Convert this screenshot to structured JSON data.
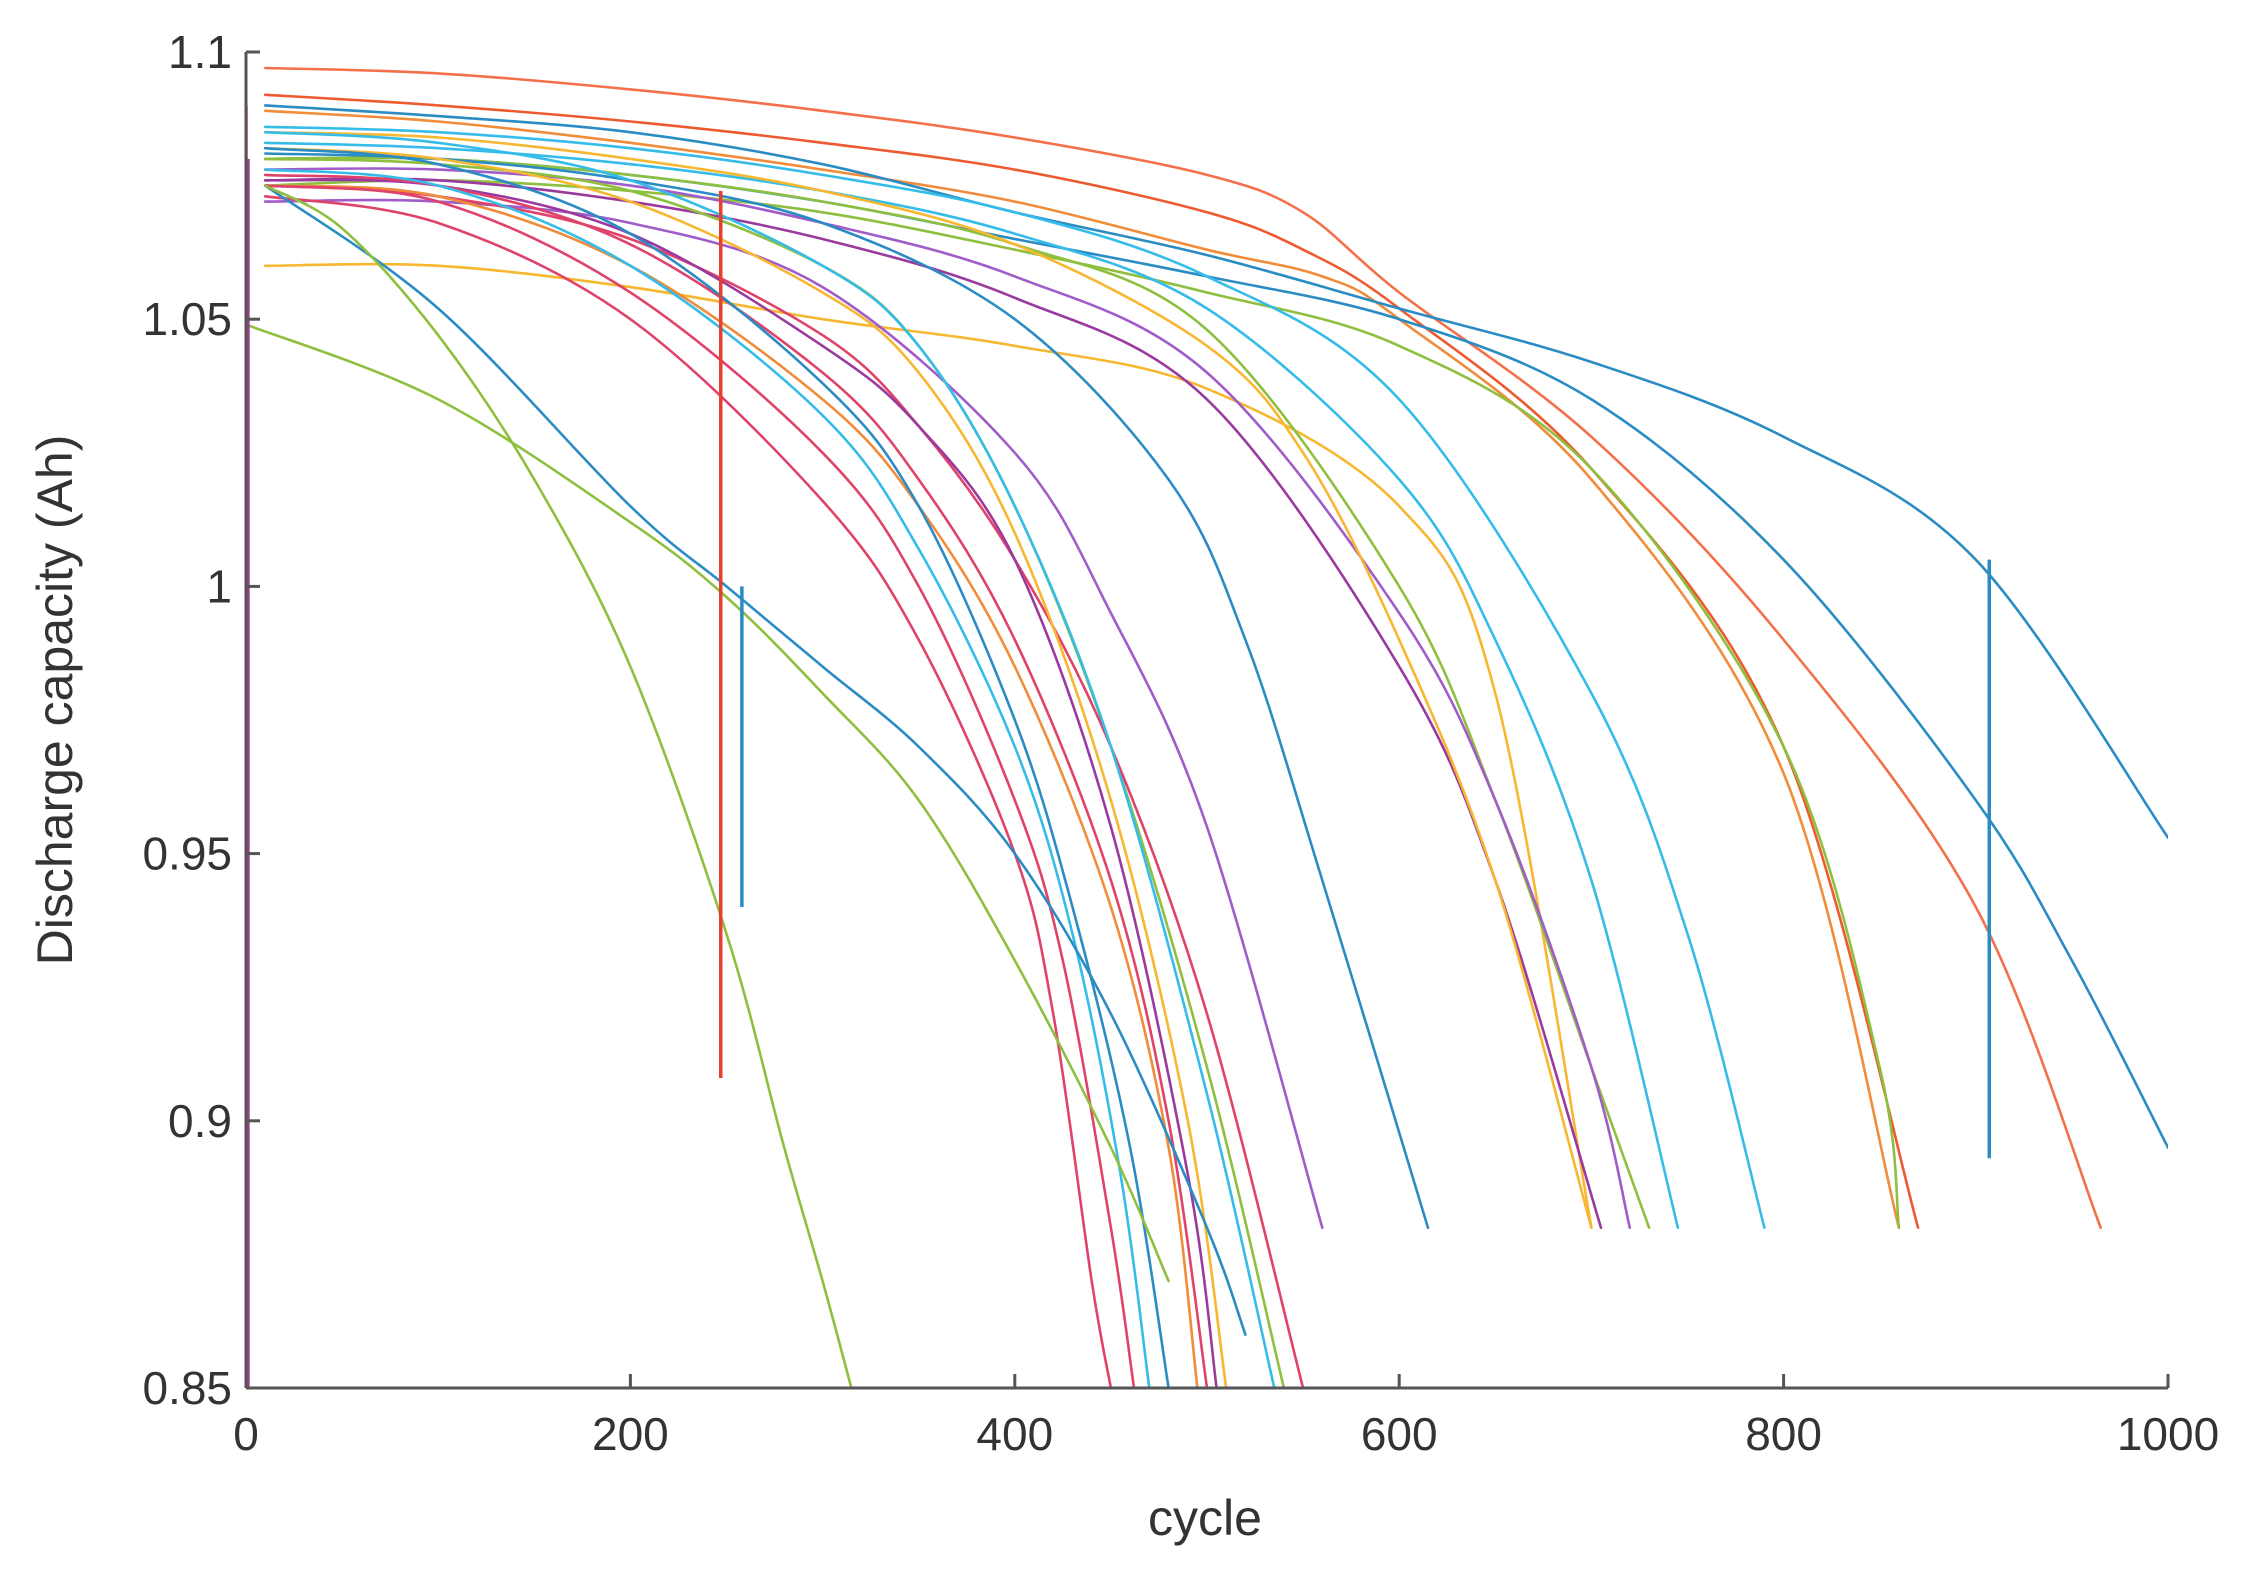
{
  "chart_data": {
    "type": "line",
    "title": "",
    "xlabel": "cycle",
    "ylabel": "Discharge capacity (Ah)",
    "xlim": [
      0,
      1000
    ],
    "ylim": [
      0.85,
      1.1
    ],
    "x_ticks": [
      0,
      200,
      400,
      600,
      800,
      1000
    ],
    "x_tick_labels": [
      "0",
      "200",
      "400",
      "600",
      "800",
      "1000"
    ],
    "y_ticks": [
      0.85,
      0.9,
      0.95,
      1.0,
      1.05,
      1.1
    ],
    "y_tick_labels": [
      "0.85",
      "0.9",
      "0.95",
      "1",
      "1.05",
      "1.1"
    ],
    "grid": false,
    "legend": "none",
    "series": [
      {
        "color": "#f4704a",
        "x": [
          10,
          100,
          200,
          300,
          400,
          500,
          550,
          600,
          700,
          800,
          900,
          965
        ],
        "y": [
          1.097,
          1.096,
          1.093,
          1.089,
          1.084,
          1.077,
          1.07,
          1.055,
          1.028,
          0.99,
          0.94,
          0.88
        ]
      },
      {
        "color": "#ee5a30",
        "x": [
          10,
          100,
          200,
          300,
          400,
          500,
          550,
          600,
          700,
          800,
          870
        ],
        "y": [
          1.092,
          1.09,
          1.087,
          1.083,
          1.078,
          1.07,
          1.063,
          1.052,
          1.022,
          0.97,
          0.88
        ]
      },
      {
        "color": "#f08c3a",
        "x": [
          10,
          100,
          200,
          300,
          400,
          500,
          560,
          600,
          700,
          800,
          860
        ],
        "y": [
          1.089,
          1.087,
          1.083,
          1.078,
          1.072,
          1.063,
          1.058,
          1.05,
          1.02,
          0.965,
          0.88
        ]
      },
      {
        "color": "#2b8cc4",
        "x": [
          10,
          100,
          200,
          300,
          400,
          500,
          600,
          700,
          800,
          900,
          1000
        ],
        "y": [
          1.09,
          1.088,
          1.085,
          1.079,
          1.07,
          1.062,
          1.052,
          1.042,
          1.028,
          1.005,
          0.953
        ]
      },
      {
        "color": "#2b8cc4",
        "x": [
          10,
          100,
          200,
          300,
          400,
          500,
          600,
          700,
          800,
          900,
          950,
          1000
        ],
        "y": [
          1.08,
          1.08,
          1.077,
          1.072,
          1.065,
          1.058,
          1.05,
          1.035,
          1.005,
          0.96,
          0.93,
          0.895
        ]
      },
      {
        "color": "#8fbf3f",
        "x": [
          10,
          100,
          200,
          300,
          400,
          500,
          600,
          700,
          800,
          850,
          860
        ],
        "y": [
          1.075,
          1.076,
          1.074,
          1.07,
          1.063,
          1.055,
          1.045,
          1.022,
          0.97,
          0.91,
          0.88
        ]
      },
      {
        "color": "#35bce8",
        "x": [
          10,
          100,
          200,
          300,
          400,
          500,
          600,
          700,
          750,
          790
        ],
        "y": [
          1.086,
          1.085,
          1.082,
          1.077,
          1.07,
          1.058,
          1.035,
          0.98,
          0.935,
          0.88
        ]
      },
      {
        "color": "#35bce8",
        "x": [
          10,
          100,
          200,
          300,
          400,
          500,
          600,
          650,
          700,
          745
        ],
        "y": [
          1.083,
          1.082,
          1.079,
          1.074,
          1.066,
          1.052,
          1.02,
          0.99,
          0.945,
          0.88
        ]
      },
      {
        "color": "#f7b731",
        "x": [
          10,
          100,
          200,
          300,
          400,
          500,
          600,
          650,
          700
        ],
        "y": [
          1.06,
          1.06,
          1.056,
          1.05,
          1.045,
          1.037,
          1.015,
          0.98,
          0.88
        ]
      },
      {
        "color": "#8fbf3f",
        "x": [
          10,
          100,
          200,
          300,
          400,
          500,
          600,
          650,
          700,
          730
        ],
        "y": [
          1.08,
          1.08,
          1.077,
          1.072,
          1.064,
          1.048,
          1.0,
          0.96,
          0.91,
          0.88
        ]
      },
      {
        "color": "#a05cc8",
        "x": [
          10,
          100,
          200,
          300,
          400,
          500,
          600,
          650,
          700,
          720
        ],
        "y": [
          1.078,
          1.078,
          1.075,
          1.068,
          1.058,
          1.04,
          0.995,
          0.96,
          0.91,
          0.88
        ]
      },
      {
        "color": "#9b3a9e",
        "x": [
          10,
          100,
          200,
          300,
          400,
          500,
          600,
          650,
          705
        ],
        "y": [
          1.076,
          1.076,
          1.072,
          1.065,
          1.054,
          1.035,
          0.985,
          0.945,
          0.88
        ]
      },
      {
        "color": "#f7b731",
        "x": [
          10,
          100,
          200,
          300,
          400,
          500,
          550,
          600,
          650,
          700
        ],
        "y": [
          1.085,
          1.084,
          1.08,
          1.074,
          1.064,
          1.045,
          1.025,
          0.99,
          0.945,
          0.88
        ]
      },
      {
        "color": "#2b8cc4",
        "x": [
          10,
          100,
          200,
          300,
          400,
          480,
          520,
          560,
          615
        ],
        "y": [
          1.081,
          1.08,
          1.076,
          1.068,
          1.05,
          1.02,
          0.99,
          0.945,
          0.88
        ]
      },
      {
        "color": "#a05cc8",
        "x": [
          10,
          100,
          200,
          300,
          400,
          450,
          500,
          560
        ],
        "y": [
          1.072,
          1.072,
          1.068,
          1.056,
          1.025,
          0.995,
          0.955,
          0.88
        ]
      },
      {
        "color": "#8fbf3f",
        "x": [
          10,
          100,
          200,
          300,
          350,
          400,
          450,
          500,
          540
        ],
        "y": [
          1.08,
          1.079,
          1.074,
          1.06,
          1.045,
          1.015,
          0.97,
          0.91,
          0.85
        ]
      },
      {
        "color": "#e0436a",
        "x": [
          10,
          100,
          200,
          300,
          350,
          400,
          450,
          500,
          550
        ],
        "y": [
          1.075,
          1.073,
          1.065,
          1.047,
          1.03,
          1.005,
          0.97,
          0.92,
          0.85
        ]
      },
      {
        "color": "#35bce8",
        "x": [
          10,
          100,
          200,
          300,
          350,
          400,
          450,
          500,
          535
        ],
        "y": [
          1.085,
          1.083,
          1.076,
          1.06,
          1.045,
          1.015,
          0.97,
          0.905,
          0.85
        ]
      },
      {
        "color": "#f7b731",
        "x": [
          10,
          100,
          200,
          300,
          350,
          400,
          450,
          490,
          510
        ],
        "y": [
          1.082,
          1.08,
          1.072,
          1.055,
          1.04,
          1.01,
          0.96,
          0.9,
          0.85
        ]
      },
      {
        "color": "#9b3a9e",
        "x": [
          10,
          100,
          200,
          300,
          350,
          400,
          450,
          490,
          505
        ],
        "y": [
          1.076,
          1.075,
          1.066,
          1.045,
          1.03,
          1.005,
          0.955,
          0.89,
          0.85
        ]
      },
      {
        "color": "#e0436a",
        "x": [
          10,
          100,
          200,
          300,
          350,
          400,
          450,
          480,
          500
        ],
        "y": [
          1.077,
          1.075,
          1.064,
          1.04,
          1.02,
          0.99,
          0.945,
          0.9,
          0.85
        ]
      },
      {
        "color": "#f08c3a",
        "x": [
          10,
          100,
          200,
          300,
          350,
          400,
          450,
          480,
          495
        ],
        "y": [
          1.075,
          1.073,
          1.06,
          1.035,
          1.015,
          0.985,
          0.94,
          0.895,
          0.85
        ]
      },
      {
        "color": "#2b8cc4",
        "x": [
          10,
          100,
          200,
          300,
          350,
          400,
          430,
          460,
          480
        ],
        "y": [
          1.082,
          1.079,
          1.066,
          1.038,
          1.015,
          0.975,
          0.94,
          0.895,
          0.85
        ]
      },
      {
        "color": "#35bce8",
        "x": [
          10,
          100,
          200,
          300,
          350,
          400,
          430,
          455,
          470
        ],
        "y": [
          1.078,
          1.075,
          1.06,
          1.032,
          1.007,
          0.97,
          0.935,
          0.89,
          0.85
        ]
      },
      {
        "color": "#e0436a",
        "x": [
          10,
          100,
          200,
          300,
          350,
          400,
          425,
          450,
          462
        ],
        "y": [
          1.075,
          1.072,
          1.055,
          1.025,
          1.0,
          0.96,
          0.93,
          0.88,
          0.85
        ]
      },
      {
        "color": "#e0436a",
        "x": [
          10,
          100,
          200,
          300,
          350,
          400,
          420,
          440,
          450
        ],
        "y": [
          1.073,
          1.068,
          1.05,
          1.016,
          0.99,
          0.95,
          0.92,
          0.87,
          0.85
        ]
      },
      {
        "color": "#2b8cc4",
        "x": [
          10,
          100,
          200,
          250,
          300,
          350,
          400,
          450,
          500,
          520
        ],
        "y": [
          1.075,
          1.052,
          1.015,
          1.0,
          0.985,
          0.97,
          0.95,
          0.92,
          0.88,
          0.86
        ]
      },
      {
        "color": "#8fbf3f",
        "x": [
          0,
          100,
          200,
          250,
          300,
          350,
          400,
          450,
          480
        ],
        "y": [
          1.049,
          1.035,
          1.012,
          0.998,
          0.98,
          0.96,
          0.93,
          0.895,
          0.87
        ]
      },
      {
        "color": "#8fbf3f",
        "x": [
          10,
          50,
          100,
          150,
          200,
          250,
          280,
          300,
          315
        ],
        "y": [
          1.075,
          1.067,
          1.047,
          1.02,
          0.985,
          0.935,
          0.895,
          0.87,
          0.85
        ]
      }
    ],
    "drops": [
      {
        "color": "#e53f2e",
        "x": 247,
        "y": [
          1.074,
          0.908
        ]
      },
      {
        "color": "#2b8cc4",
        "x": 258,
        "y": [
          1.0,
          0.94
        ]
      },
      {
        "color": "#2b8cc4",
        "x": 907,
        "y": [
          1.005,
          0.893
        ]
      },
      {
        "color": "#9b3a9e",
        "x": 1,
        "y": [
          1.08,
          0.85
        ]
      },
      {
        "color": "#e53f2e",
        "x": 0,
        "y": [
          1.09,
          0.85
        ]
      }
    ]
  }
}
